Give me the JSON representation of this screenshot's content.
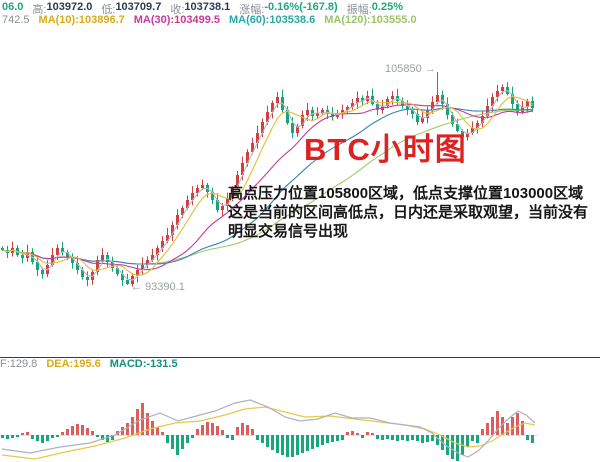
{
  "header": {
    "line1": {
      "open_fragment": "06.0",
      "high_label": "高:",
      "high": "103972.0",
      "low_label": "低:",
      "low": "103709.7",
      "close_label": "收:",
      "close": "103738.1",
      "change_label": "涨幅:",
      "change": "-0.16%(-167.8)",
      "amplitude_label": "振幅:",
      "amplitude": "0.25%"
    },
    "line2": {
      "ma5_fragment": "742.5",
      "ma10_label": "MA(10):",
      "ma10": "103896.7",
      "ma30_label": "MA(30):",
      "ma30": "103499.5",
      "ma60_label": "MA(60):",
      "ma60": "103538.6",
      "ma120_label": "MA(120):",
      "ma120": "103555.0"
    }
  },
  "overlay": {
    "title": "BTC小时图",
    "note_line1": "高点压力位置105800区域，低点支撑位置103000区域",
    "note_line2": "这是当前的区间高低点，日内还是采取观望，当前没有",
    "note_line3": "明显交易信号出现"
  },
  "annotations": {
    "high_marker": "105850 →",
    "low_marker": "← 93390.1"
  },
  "macd_header": {
    "dif_fragment": "F:129.8",
    "dea_label": "DEA:",
    "dea": "195.6",
    "macd_label": "MACD:",
    "macd": "-131.5"
  },
  "colors": {
    "up": "#cf4040",
    "down": "#18a478",
    "ma5": "#b3b8c2",
    "ma10": "#e4bd34",
    "ma30": "#c53a9c",
    "ma60": "#3584b8",
    "ma120": "#a2c96d",
    "ma10_text": "#d9ab17",
    "ma30_text": "#c53a9c",
    "ma60_text": "#2aa7a7",
    "ma120_text": "#9cc56a",
    "macd_red": "#e05c5c",
    "macd_green": "#16a87a",
    "dif": "#aab2bf",
    "dea": "#e8c84a",
    "accent_green": "#21a67d",
    "value_dark": "#2f3a52",
    "label_gray": "#8a8f99",
    "title_red": "#dd2222",
    "note_dark": "#161616",
    "marker_gray": "#9aa0a8",
    "macd_value_teal": "#13917f"
  },
  "chart_data": {
    "type": "candlestick+macd",
    "symbol": "BTC",
    "timeframe_title": "BTC小时图",
    "price_anchors": {
      "marked_low": 93390.1,
      "marked_high": 105850,
      "last_close": 103738.1
    },
    "closes": [
      95438,
      95262,
      95555,
      95145,
      94970,
      95321,
      94736,
      94268,
      94034,
      94560,
      95145,
      95555,
      95321,
      94970,
      94677,
      94268,
      93858,
      93683,
      94151,
      94853,
      95145,
      94736,
      94385,
      94034,
      93683,
      93449,
      93917,
      94268,
      94560,
      94853,
      95145,
      95555,
      95965,
      96315,
      96900,
      97485,
      97895,
      98363,
      98772,
      99065,
      99240,
      98831,
      98363,
      97778,
      98012,
      98480,
      99065,
      99825,
      100527,
      101171,
      101697,
      102282,
      102926,
      103511,
      104037,
      104388,
      103628,
      102867,
      102282,
      102692,
      103335,
      103628,
      103277,
      103452,
      103628,
      103394,
      103218,
      103452,
      103628,
      103803,
      104037,
      104330,
      104154,
      104447,
      103979,
      103628,
      103862,
      104271,
      104447,
      104154,
      103862,
      103686,
      103394,
      102926,
      103160,
      103628,
      104096,
      104505,
      103979,
      103335,
      102809,
      102399,
      102048,
      102282,
      102575,
      102867,
      103277,
      103862,
      104388,
      104739,
      104973,
      104564,
      103979,
      103511,
      103803,
      104154,
      103738
    ],
    "spike_low": {
      "index": 25,
      "price": 93390.1
    },
    "spike_high": {
      "index": 87,
      "price": 105850
    },
    "ma_windows": {
      "ma5": 3,
      "ma10": 6,
      "ma30": 16,
      "ma60": 30,
      "ma120": 48
    },
    "macd_readout": {
      "dif": 129.8,
      "dea": 195.6,
      "macd": -131.5
    },
    "macd_hist": [
      -3,
      -4,
      -3,
      -2,
      2,
      3,
      -4,
      -6,
      -8,
      -6,
      -3,
      -2,
      3,
      6,
      9,
      11,
      10,
      7,
      4,
      -2,
      -5,
      -7,
      -5,
      4,
      8,
      12,
      18,
      26,
      32,
      22,
      14,
      8,
      3,
      -8,
      -14,
      -20,
      -14,
      -8,
      -3,
      6,
      10,
      13,
      12,
      9,
      5,
      -3,
      -5,
      8,
      12,
      10,
      6,
      -5,
      -8,
      -12,
      -15,
      -18,
      -20,
      -22,
      -22,
      -20,
      -18,
      -16,
      -14,
      -12,
      -10,
      -8,
      -7,
      -6,
      -5,
      3,
      4,
      2,
      -3,
      3,
      2,
      -4,
      -5,
      -4,
      -5,
      -6,
      -5,
      -6,
      -5,
      -6,
      -8,
      -7,
      -6,
      -10,
      -15,
      -20,
      -24,
      -26,
      -20,
      -12,
      -6,
      -8,
      6,
      12,
      18,
      24,
      18,
      12,
      18,
      22,
      14,
      -5,
      -8
    ],
    "dif_path": [
      [
        2,
        -14
      ],
      [
        30,
        -18
      ],
      [
        60,
        -12
      ],
      [
        90,
        -8
      ],
      [
        115,
        0
      ],
      [
        140,
        15
      ],
      [
        160,
        22
      ],
      [
        178,
        14
      ],
      [
        200,
        20
      ],
      [
        215,
        24
      ],
      [
        235,
        32
      ],
      [
        250,
        35
      ],
      [
        268,
        28
      ],
      [
        285,
        18
      ],
      [
        300,
        14
      ],
      [
        318,
        16
      ],
      [
        335,
        22
      ],
      [
        352,
        17
      ],
      [
        370,
        17
      ],
      [
        390,
        12
      ],
      [
        405,
        10
      ],
      [
        420,
        8
      ],
      [
        432,
        2
      ],
      [
        445,
        -10
      ],
      [
        458,
        -18
      ],
      [
        468,
        -22
      ],
      [
        478,
        -16
      ],
      [
        488,
        -6
      ],
      [
        498,
        6
      ],
      [
        508,
        16
      ],
      [
        518,
        24
      ],
      [
        526,
        20
      ],
      [
        535,
        12
      ]
    ],
    "dea_path": [
      [
        2,
        -20
      ],
      [
        35,
        -24
      ],
      [
        65,
        -17
      ],
      [
        95,
        -11
      ],
      [
        125,
        -3
      ],
      [
        150,
        6
      ],
      [
        175,
        12
      ],
      [
        200,
        14
      ],
      [
        225,
        20
      ],
      [
        245,
        26
      ],
      [
        265,
        28
      ],
      [
        285,
        23
      ],
      [
        305,
        18
      ],
      [
        330,
        19
      ],
      [
        355,
        16
      ],
      [
        380,
        13
      ],
      [
        405,
        10
      ],
      [
        425,
        6
      ],
      [
        440,
        0
      ],
      [
        455,
        -8
      ],
      [
        468,
        -12
      ],
      [
        480,
        -11
      ],
      [
        492,
        -6
      ],
      [
        505,
        2
      ],
      [
        515,
        8
      ],
      [
        525,
        12
      ],
      [
        535,
        10
      ]
    ]
  }
}
